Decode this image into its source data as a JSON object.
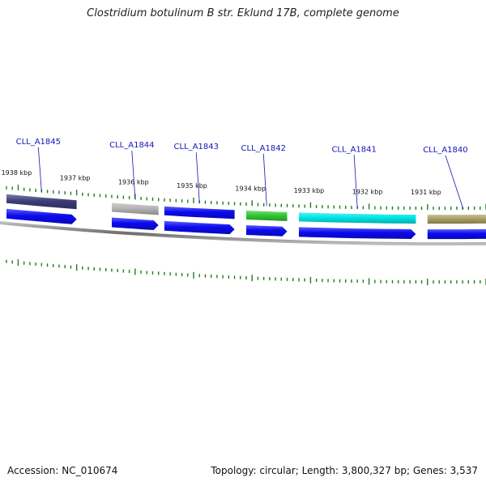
{
  "title": "Clostridium botulinum B str. Eklund 17B, complete genome",
  "footer": {
    "accession": "Accession: NC_010674",
    "stats": "Topology: circular; Length: 3,800,327 bp; Genes: 3,537"
  },
  "colors": {
    "backbone": "#8c8c8c",
    "tick": "#1e7d1e",
    "cds": "#0a0af0",
    "label": "#1414b4"
  },
  "chart_data": {
    "type": "genome-map",
    "strand": "reverse",
    "tick_labels": [
      {
        "label": "1938 kbp",
        "position_kbp": 1938
      },
      {
        "label": "1937 kbp",
        "position_kbp": 1937
      },
      {
        "label": "1936 kbp",
        "position_kbp": 1936
      },
      {
        "label": "1935 kbp",
        "position_kbp": 1935
      },
      {
        "label": "1934 kbp",
        "position_kbp": 1934
      },
      {
        "label": "1933 kbp",
        "position_kbp": 1933
      },
      {
        "label": "1932 kbp",
        "position_kbp": 1932
      },
      {
        "label": "1931 kbp",
        "position_kbp": 1931
      }
    ],
    "genes": [
      {
        "name": "CLL_A1845",
        "start_kbp": 1938.3,
        "end_kbp": 1937.0,
        "color": "#3c3c78"
      },
      {
        "name": "CLL_A1844",
        "start_kbp": 1936.4,
        "end_kbp": 1935.6,
        "color": "#b4b4b4"
      },
      {
        "name": "CLL_A1843",
        "start_kbp": 1935.5,
        "end_kbp": 1934.3,
        "color": "#0a0af0"
      },
      {
        "name": "CLL_A1842",
        "start_kbp": 1934.1,
        "end_kbp": 1933.4,
        "color": "#32c832"
      },
      {
        "name": "CLL_A1841",
        "start_kbp": 1933.2,
        "end_kbp": 1931.2,
        "color": "#00e6e6"
      },
      {
        "name": "CLL_A1840",
        "start_kbp": 1931.0,
        "end_kbp": 1930.0,
        "color": "#aaa064"
      }
    ]
  }
}
